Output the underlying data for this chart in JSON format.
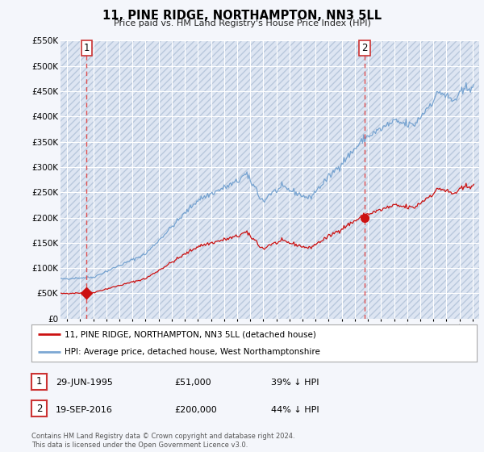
{
  "title": "11, PINE RIDGE, NORTHAMPTON, NN3 5LL",
  "subtitle": "Price paid vs. HM Land Registry's House Price Index (HPI)",
  "background_color": "#f4f6fb",
  "plot_bg_color": "#dde5f2",
  "grid_color": "#ffffff",
  "red_line_color": "#cc1111",
  "blue_line_color": "#6699cc",
  "dashed_red_color": "#e05050",
  "sale1_year": 1995.5,
  "sale1_price": 51000,
  "sale2_year": 2016.75,
  "sale2_price": 200000,
  "legend_line1": "11, PINE RIDGE, NORTHAMPTON, NN3 5LL (detached house)",
  "legend_line2": "HPI: Average price, detached house, West Northamptonshire",
  "footer": "Contains HM Land Registry data © Crown copyright and database right 2024.\nThis data is licensed under the Open Government Licence v3.0.",
  "ylim": [
    0,
    550000
  ],
  "yticks": [
    0,
    50000,
    100000,
    150000,
    200000,
    250000,
    300000,
    350000,
    400000,
    450000,
    500000,
    550000
  ],
  "ytick_labels": [
    "£0",
    "£50K",
    "£100K",
    "£150K",
    "£200K",
    "£250K",
    "£300K",
    "£350K",
    "£400K",
    "£450K",
    "£500K",
    "£550K"
  ],
  "xlim_left": 1993.5,
  "xlim_right": 2025.5,
  "xtick_years": [
    1994,
    1995,
    1996,
    1997,
    1998,
    1999,
    2000,
    2001,
    2002,
    2003,
    2004,
    2005,
    2006,
    2007,
    2008,
    2009,
    2010,
    2011,
    2012,
    2013,
    2014,
    2015,
    2016,
    2017,
    2018,
    2019,
    2020,
    2021,
    2022,
    2023,
    2024,
    2025
  ],
  "row1_date": "29-JUN-1995",
  "row1_price": "£51,000",
  "row1_pct": "39% ↓ HPI",
  "row2_date": "19-SEP-2016",
  "row2_price": "£200,000",
  "row2_pct": "44% ↓ HPI"
}
